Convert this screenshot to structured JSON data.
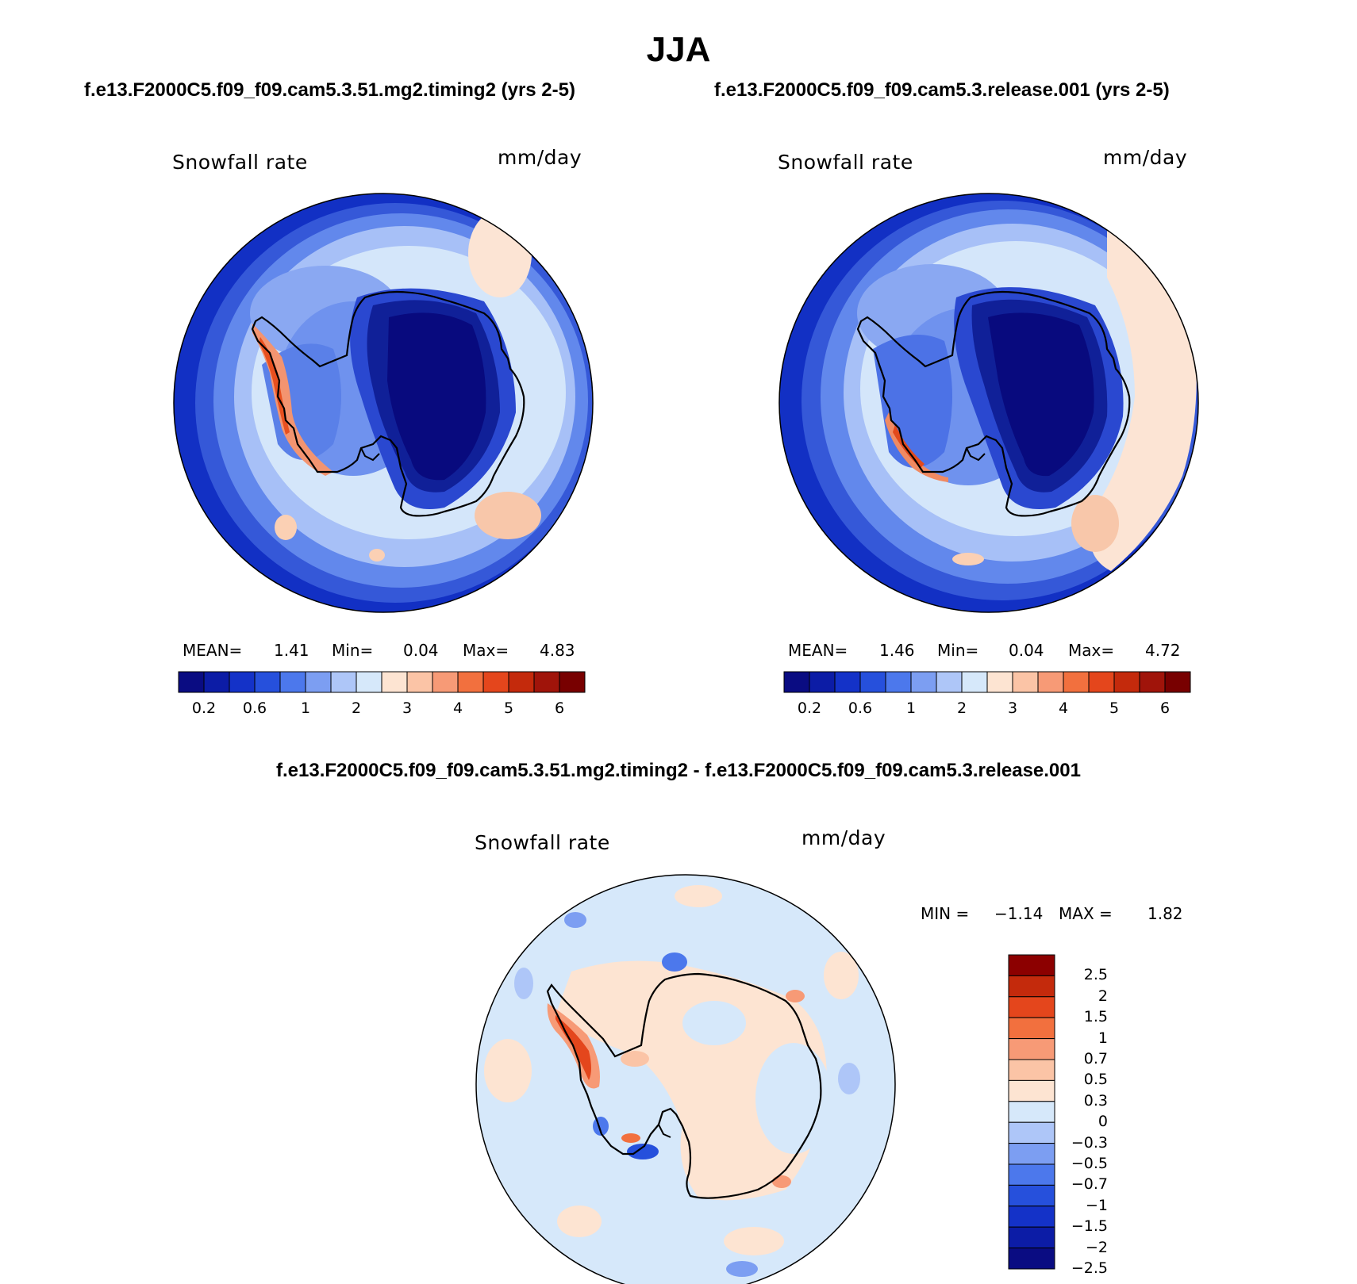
{
  "figure": {
    "title": "JJA",
    "left_case": "f.e13.F2000C5.f09_f09.cam5.3.51.mg2.timing2 (yrs 2-5)",
    "right_case": "f.e13.F2000C5.f09_f09.cam5.3.release.001 (yrs 2-5)",
    "diff_title": "f.e13.F2000C5.f09_f09.cam5.3.51.mg2.timing2 - f.e13.F2000C5.f09_f09.cam5.3.release.001"
  },
  "panels": [
    {
      "variable": "Snowfall rate",
      "units": "mm/day",
      "mean_label": "MEAN=",
      "mean": "1.41",
      "min_label": "Min=",
      "min": "0.04",
      "max_label": "Max=",
      "max": "4.83"
    },
    {
      "variable": "Snowfall rate",
      "units": "mm/day",
      "mean_label": "MEAN=",
      "mean": "1.46",
      "min_label": "Min=",
      "min": "0.04",
      "max_label": "Max=",
      "max": "4.72"
    }
  ],
  "diff_panel": {
    "variable": "Snowfall rate",
    "units": "mm/day",
    "min_label": "MIN =",
    "min": "−1.14",
    "max_label": "MAX =",
    "max": "1.82"
  },
  "abs_colorbar": {
    "colors": [
      "#0a0c82",
      "#0c1ca6",
      "#1432c8",
      "#2650dc",
      "#4c78ec",
      "#7c9ef2",
      "#aec6f8",
      "#d6e8fa",
      "#fde4d2",
      "#fbc4a6",
      "#f79a76",
      "#f2703e",
      "#e4461c",
      "#c42a0c",
      "#a0140a",
      "#780000"
    ],
    "tick_labels": [
      "0.2",
      "0.6",
      "1",
      "2",
      "3",
      "4",
      "5",
      "6"
    ],
    "tick_after_box": [
      1,
      3,
      5,
      7,
      9,
      11,
      13,
      15
    ]
  },
  "diff_colorbar": {
    "colors_top_to_bottom": [
      "#8c0000",
      "#c42a0c",
      "#e4461c",
      "#f2703e",
      "#f79a76",
      "#fbc4a6",
      "#fde4d2",
      "#d6e8fa",
      "#aec6f8",
      "#7c9ef2",
      "#4c78ec",
      "#2650dc",
      "#1432c8",
      "#0c1ca6",
      "#0a0c82"
    ],
    "tick_labels": [
      "2.5",
      "2",
      "1.5",
      "1",
      "0.7",
      "0.5",
      "0.3",
      "0",
      "−0.3",
      "−0.5",
      "−0.7",
      "−1",
      "−1.5",
      "−2",
      "−2.5"
    ]
  }
}
